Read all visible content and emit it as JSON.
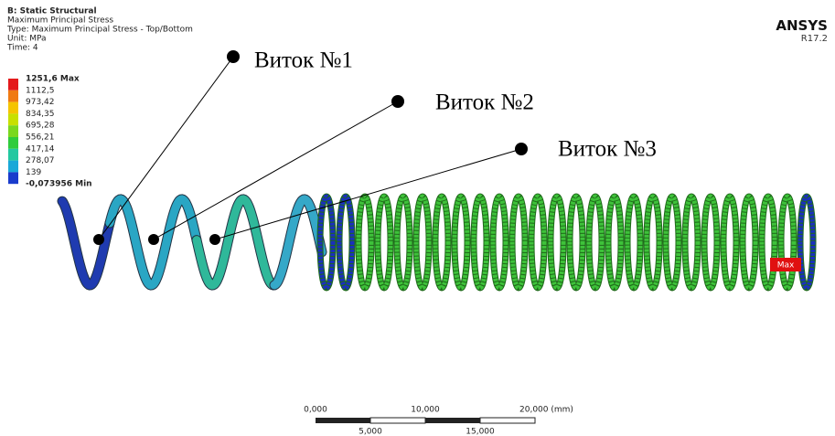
{
  "header": {
    "title": "B: Static Structural",
    "lines": [
      "Maximum Principal Stress",
      "Type: Maximum Principal Stress - Top/Bottom",
      "Unit: MPa",
      "Time: 4"
    ]
  },
  "legend": {
    "labels": [
      "1251,6 Max",
      "1112,5",
      "973,42",
      "834,35",
      "695,28",
      "556,21",
      "417,14",
      "278,07",
      "139",
      "-0,073956 Min"
    ]
  },
  "annotations": [
    "Виток №1",
    "Виток №2",
    "Виток №3"
  ],
  "logo": {
    "name": "ANSYS",
    "version": "R17.2"
  },
  "probe": "Max",
  "scale_bar": {
    "top": [
      "0,000",
      "10,000",
      "20,000 (mm)"
    ],
    "bottom": [
      "5,000",
      "15,000"
    ]
  }
}
